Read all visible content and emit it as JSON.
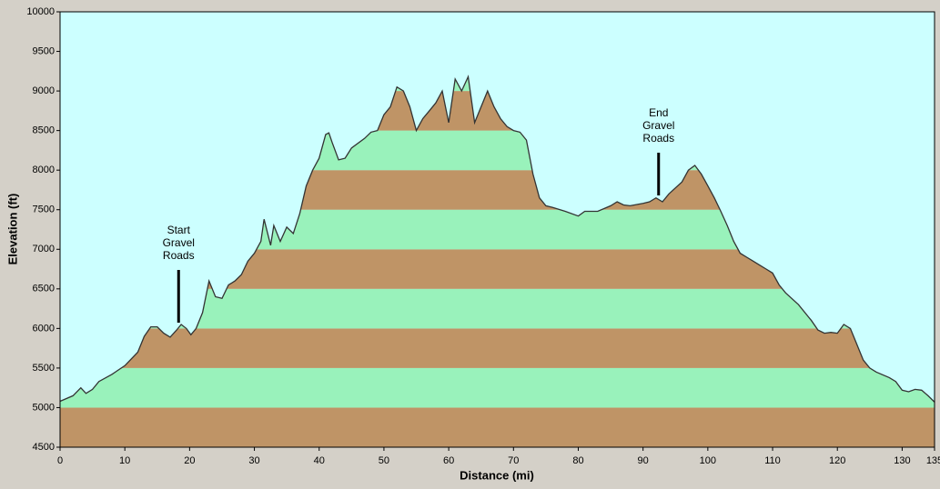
{
  "chart_data": {
    "type": "area",
    "xlabel": "Distance  (mi)",
    "ylabel": "Elevation (ft)",
    "xlim": [
      0,
      135
    ],
    "ylim": [
      4500,
      10000
    ],
    "xticks": [
      0,
      10,
      20,
      30,
      40,
      50,
      60,
      70,
      80,
      90,
      100,
      110,
      120,
      130,
      135
    ],
    "yticks": [
      4500,
      5000,
      5500,
      6000,
      6500,
      7000,
      7500,
      8000,
      8500,
      9000,
      9500,
      10000
    ],
    "background": "#ccffff",
    "band_colors": [
      "#bf9466",
      "#99f2bb"
    ],
    "line_color": "#333333",
    "x": [
      0,
      2,
      3.2,
      4,
      5,
      6,
      8,
      10,
      12,
      13,
      14,
      15,
      16,
      17,
      18,
      18.7,
      19.5,
      20.2,
      21,
      22,
      23,
      24,
      25,
      26,
      27,
      28,
      29,
      30,
      31,
      31.5,
      32.5,
      33,
      34,
      35,
      36,
      37,
      38,
      39,
      40,
      41,
      41.5,
      42,
      43,
      44,
      45,
      47,
      48,
      49,
      50,
      51,
      52,
      53,
      54,
      55,
      56,
      57,
      58,
      59,
      60,
      61,
      62,
      63,
      64,
      65,
      66,
      67,
      68,
      69,
      70,
      71,
      72,
      73,
      74,
      75,
      76,
      78,
      80,
      81,
      83,
      85,
      86,
      87,
      88,
      90,
      91,
      92,
      93,
      94,
      96,
      97,
      98,
      99,
      100,
      101,
      102,
      103,
      104,
      105,
      106,
      107,
      108,
      109,
      110,
      111,
      112,
      114,
      116,
      117,
      118,
      119,
      120,
      121,
      122,
      123,
      124,
      125,
      126,
      128,
      129,
      130,
      131,
      132,
      133,
      134,
      135
    ],
    "values": [
      5080,
      5150,
      5250,
      5180,
      5230,
      5330,
      5420,
      5530,
      5700,
      5900,
      6020,
      6020,
      5940,
      5890,
      5980,
      6050,
      6000,
      5920,
      6000,
      6200,
      6600,
      6400,
      6380,
      6550,
      6600,
      6680,
      6850,
      6950,
      7100,
      7380,
      7050,
      7300,
      7100,
      7280,
      7200,
      7450,
      7800,
      8000,
      8150,
      8450,
      8470,
      8350,
      8130,
      8150,
      8280,
      8400,
      8480,
      8500,
      8700,
      8800,
      9050,
      9000,
      8800,
      8500,
      8650,
      8750,
      8850,
      9000,
      8600,
      9150,
      9000,
      9180,
      8600,
      8800,
      9000,
      8800,
      8650,
      8550,
      8500,
      8480,
      8380,
      7950,
      7650,
      7550,
      7530,
      7480,
      7420,
      7480,
      7480,
      7550,
      7600,
      7560,
      7550,
      7580,
      7600,
      7650,
      7600,
      7700,
      7850,
      8000,
      8060,
      7950,
      7800,
      7650,
      7480,
      7300,
      7100,
      6950,
      6900,
      6850,
      6800,
      6750,
      6700,
      6550,
      6450,
      6300,
      6100,
      5980,
      5940,
      5950,
      5940,
      6050,
      6000,
      5800,
      5600,
      5500,
      5450,
      5380,
      5330,
      5220,
      5200,
      5230,
      5220,
      5150,
      5070
    ],
    "annotations": [
      {
        "lines": [
          "Start",
          "Gravel",
          "Roads"
        ],
        "x": 18.3
      },
      {
        "lines": [
          "End",
          "Gravel",
          "Roads"
        ],
        "x": 92.4
      }
    ]
  }
}
